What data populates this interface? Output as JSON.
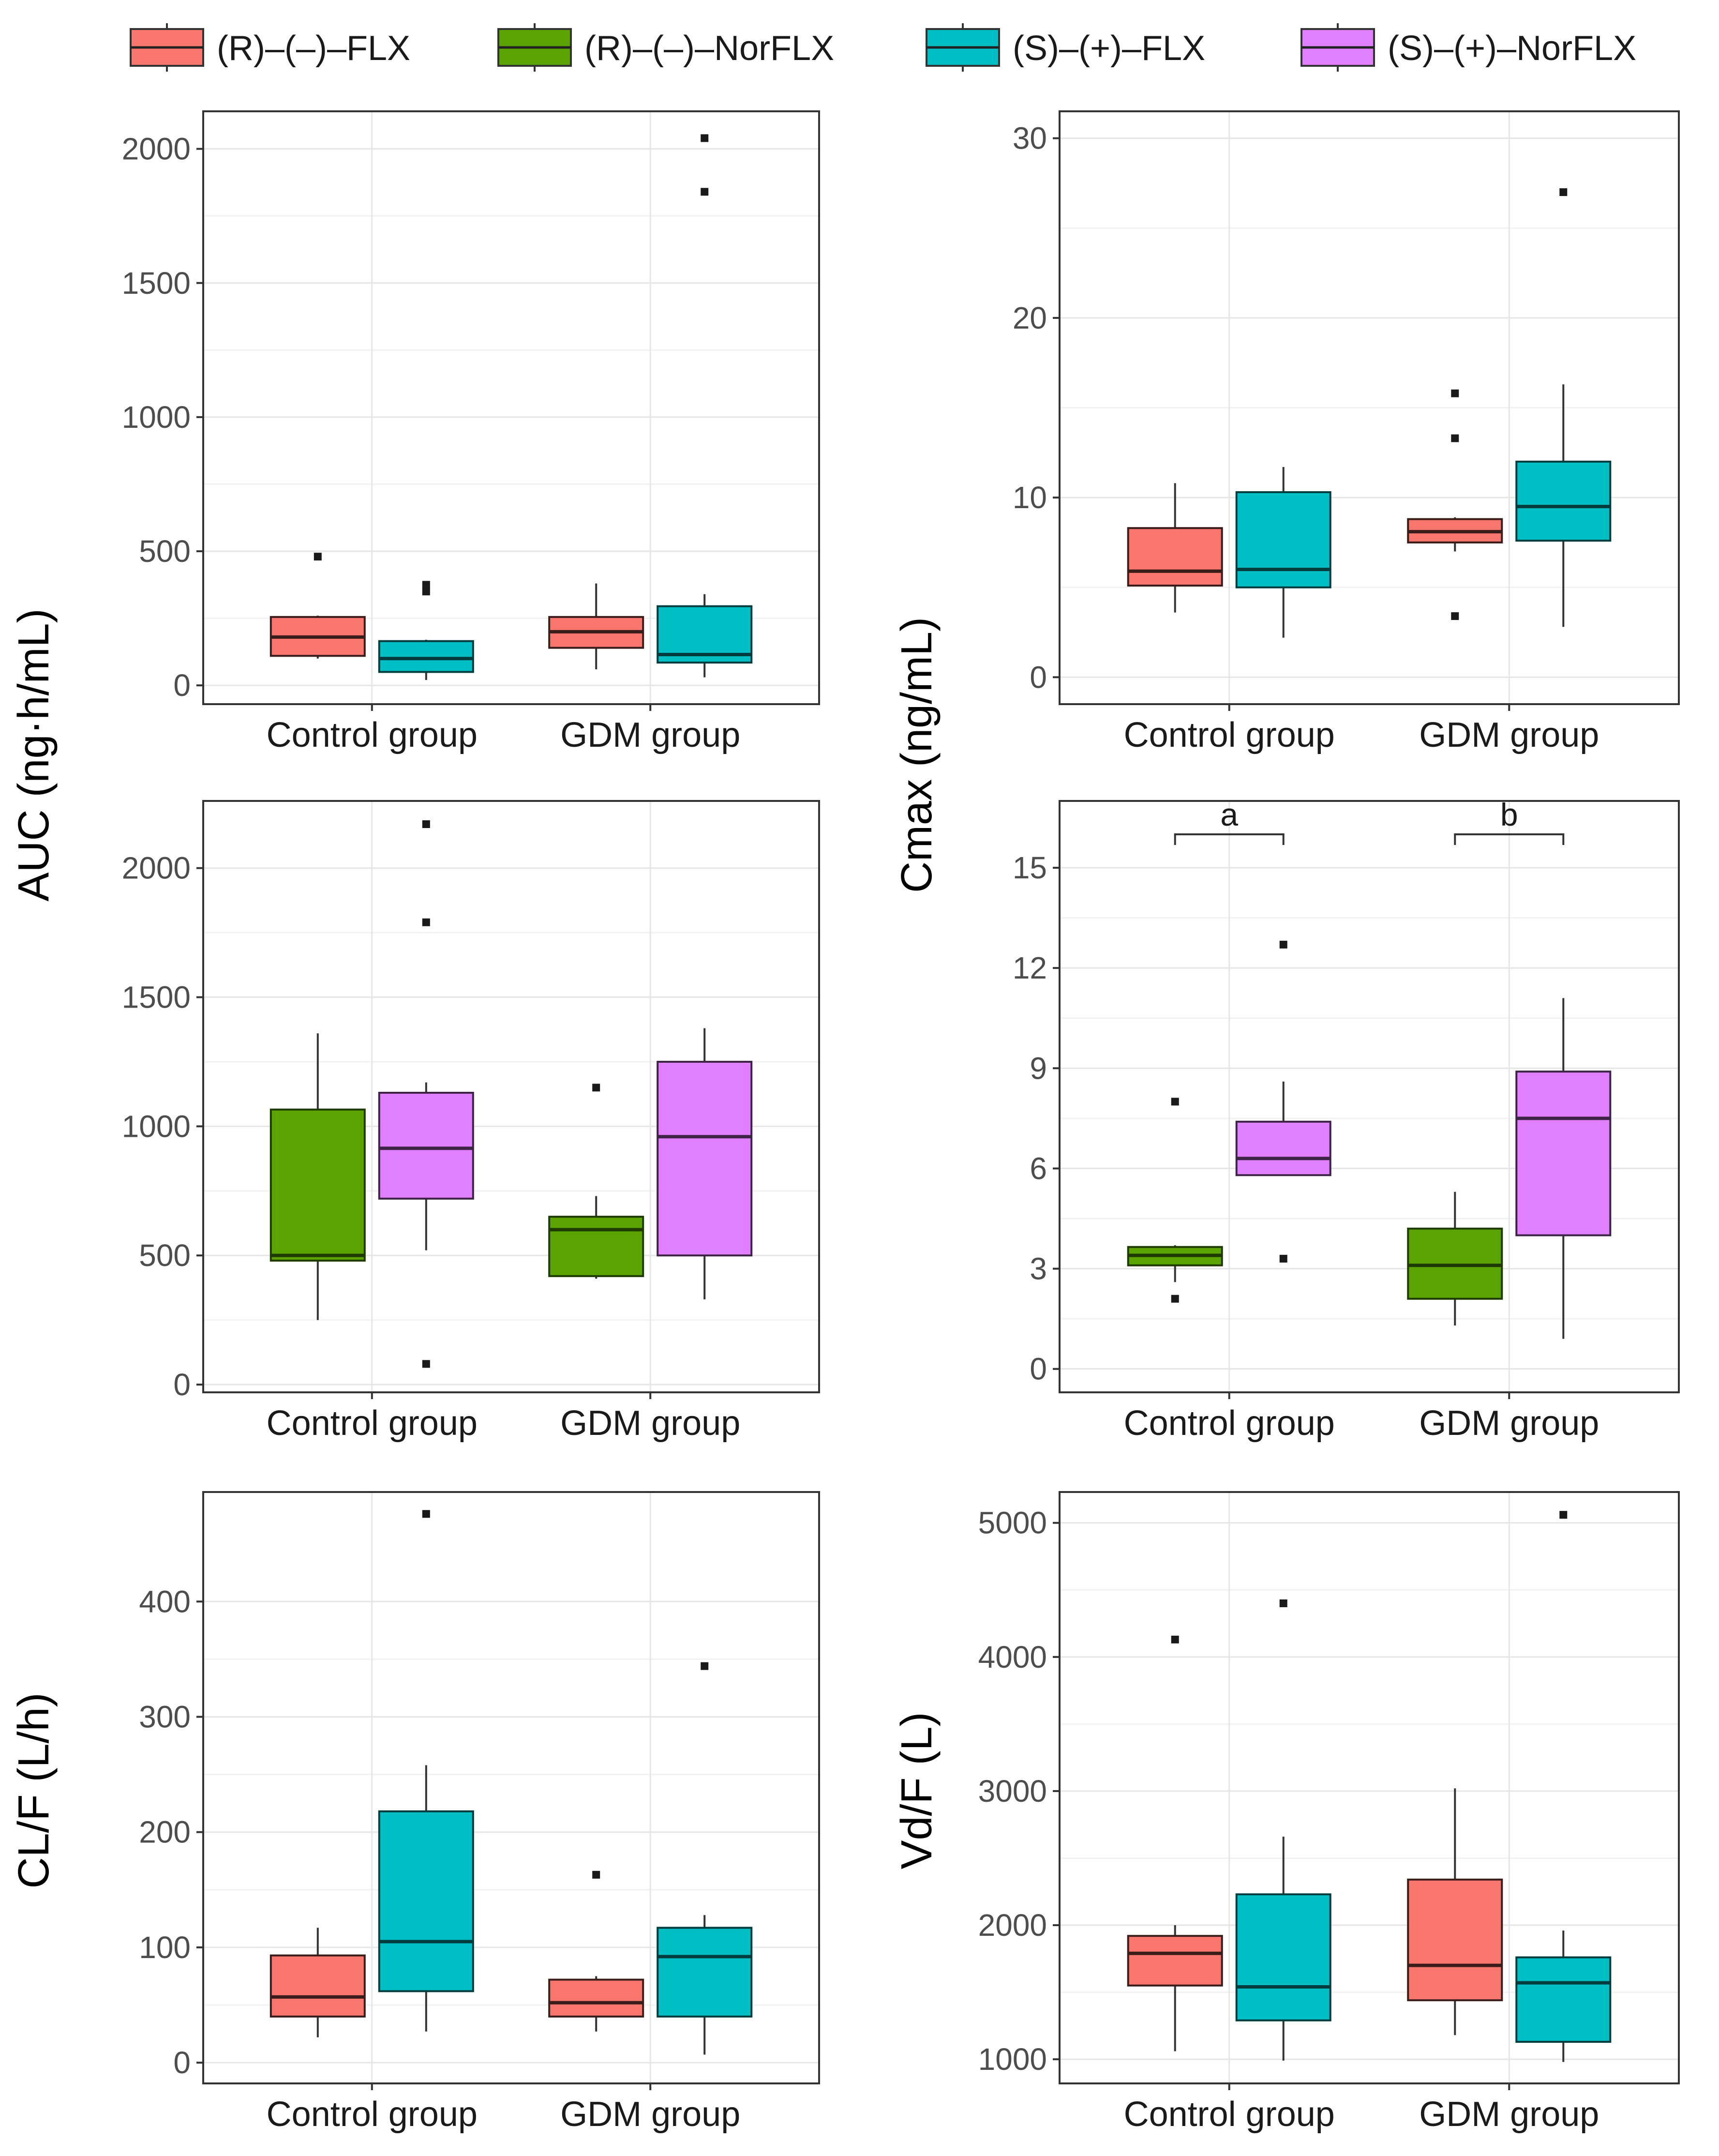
{
  "legend": [
    {
      "label": "(R)–(–)–FLX",
      "color": "#F8766D"
    },
    {
      "label": "(R)–(–)–NorFLX",
      "color": "#5BA300"
    },
    {
      "label": "(S)–(+)–FLX",
      "color": "#00BFC4"
    },
    {
      "label": "(S)–(+)–NorFLX",
      "color": "#E180FF"
    }
  ],
  "y_titles": {
    "auc": "AUC (ng·h/mL)",
    "cmax": "Cmax (ng/mL)",
    "clf": "CL/F (L/h)",
    "vdf": "Vd/F (L)"
  },
  "chart_data": [
    {
      "type": "box",
      "panel": "AUC FLX",
      "categories": [
        "Control group",
        "GDM group"
      ],
      "ylim": [
        -70,
        2140
      ],
      "yticks": [
        0,
        500,
        1000,
        1500,
        2000
      ],
      "series": [
        {
          "name": "(R)–(–)–FLX",
          "color": "#F8766D",
          "boxes": [
            {
              "whisker_low": 100,
              "q1": 110,
              "median": 180,
              "q3": 255,
              "whisker_high": 260,
              "outliers": [
                480
              ]
            },
            {
              "whisker_low": 60,
              "q1": 140,
              "median": 200,
              "q3": 255,
              "whisker_high": 380,
              "outliers": []
            }
          ]
        },
        {
          "name": "(S)–(+)–FLX",
          "color": "#00BFC4",
          "boxes": [
            {
              "whisker_low": 20,
              "q1": 50,
              "median": 100,
              "q3": 165,
              "whisker_high": 170,
              "outliers": [
                350,
                375
              ]
            },
            {
              "whisker_low": 30,
              "q1": 85,
              "median": 115,
              "q3": 295,
              "whisker_high": 340,
              "outliers": [
                1840,
                2040
              ]
            }
          ]
        }
      ]
    },
    {
      "type": "box",
      "panel": "Cmax FLX",
      "categories": [
        "Control group",
        "GDM group"
      ],
      "ylim": [
        -1.5,
        31.5
      ],
      "yticks": [
        0,
        10,
        20,
        30
      ],
      "series": [
        {
          "name": "(R)–(–)–FLX",
          "color": "#F8766D",
          "boxes": [
            {
              "whisker_low": 3.6,
              "q1": 5.1,
              "median": 5.9,
              "q3": 8.3,
              "whisker_high": 10.8,
              "outliers": []
            },
            {
              "whisker_low": 7.0,
              "q1": 7.5,
              "median": 8.1,
              "q3": 8.8,
              "whisker_high": 8.9,
              "outliers": [
                3.4,
                13.3,
                15.8
              ]
            }
          ]
        },
        {
          "name": "(S)–(+)–FLX",
          "color": "#00BFC4",
          "boxes": [
            {
              "whisker_low": 2.2,
              "q1": 5.0,
              "median": 6.0,
              "q3": 10.3,
              "whisker_high": 11.7,
              "outliers": []
            },
            {
              "whisker_low": 2.8,
              "q1": 7.6,
              "median": 9.5,
              "q3": 12.0,
              "whisker_high": 16.3,
              "outliers": [
                27.0
              ]
            }
          ]
        }
      ]
    },
    {
      "type": "box",
      "panel": "AUC NorFLX",
      "categories": [
        "Control group",
        "GDM group"
      ],
      "ylim": [
        -30,
        2260
      ],
      "yticks": [
        0,
        500,
        1000,
        1500,
        2000
      ],
      "series": [
        {
          "name": "(R)–(–)–NorFLX",
          "color": "#5BA300",
          "boxes": [
            {
              "whisker_low": 250,
              "q1": 480,
              "median": 500,
              "q3": 1065,
              "whisker_high": 1360,
              "outliers": []
            },
            {
              "whisker_low": 410,
              "q1": 420,
              "median": 600,
              "q3": 650,
              "whisker_high": 730,
              "outliers": [
                1150
              ]
            }
          ]
        },
        {
          "name": "(S)–(+)–NorFLX",
          "color": "#E180FF",
          "boxes": [
            {
              "whisker_low": 520,
              "q1": 720,
              "median": 915,
              "q3": 1130,
              "whisker_high": 1170,
              "outliers": [
                80,
                1790,
                2170
              ]
            },
            {
              "whisker_low": 330,
              "q1": 500,
              "median": 960,
              "q3": 1250,
              "whisker_high": 1380,
              "outliers": []
            }
          ]
        }
      ]
    },
    {
      "type": "box",
      "panel": "Cmax NorFLX",
      "categories": [
        "Control group",
        "GDM group"
      ],
      "ylim": [
        -0.7,
        17.0
      ],
      "yticks": [
        0,
        3,
        6,
        9,
        12,
        15
      ],
      "annotations": [
        {
          "label": "a",
          "group": "Control group",
          "bracket_y": 16.0
        },
        {
          "label": "b",
          "group": "GDM group",
          "bracket_y": 16.0
        }
      ],
      "series": [
        {
          "name": "(R)–(–)–NorFLX",
          "color": "#5BA300",
          "boxes": [
            {
              "whisker_low": 2.6,
              "q1": 3.1,
              "median": 3.4,
              "q3": 3.65,
              "whisker_high": 3.7,
              "outliers": [
                2.1,
                8.0
              ]
            },
            {
              "whisker_low": 1.3,
              "q1": 2.1,
              "median": 3.1,
              "q3": 4.2,
              "whisker_high": 5.3,
              "outliers": []
            }
          ]
        },
        {
          "name": "(S)–(+)–NorFLX",
          "color": "#E180FF",
          "boxes": [
            {
              "whisker_low": 5.8,
              "q1": 5.8,
              "median": 6.3,
              "q3": 7.4,
              "whisker_high": 8.6,
              "outliers": [
                3.3,
                12.7
              ]
            },
            {
              "whisker_low": 0.9,
              "q1": 4.0,
              "median": 7.5,
              "q3": 8.9,
              "whisker_high": 11.1,
              "outliers": []
            }
          ]
        }
      ]
    },
    {
      "type": "box",
      "panel": "CL/F FLX",
      "categories": [
        "Control group",
        "GDM group"
      ],
      "ylim": [
        -18,
        495
      ],
      "yticks": [
        0,
        100,
        200,
        300,
        400
      ],
      "series": [
        {
          "name": "(R)–(–)–FLX",
          "color": "#F8766D",
          "boxes": [
            {
              "whisker_low": 22,
              "q1": 40,
              "median": 57,
              "q3": 93,
              "whisker_high": 117,
              "outliers": []
            },
            {
              "whisker_low": 27,
              "q1": 40,
              "median": 52,
              "q3": 72,
              "whisker_high": 75,
              "outliers": [
                163
              ]
            }
          ]
        },
        {
          "name": "(S)–(+)–FLX",
          "color": "#00BFC4",
          "boxes": [
            {
              "whisker_low": 27,
              "q1": 62,
              "median": 105,
              "q3": 218,
              "whisker_high": 258,
              "outliers": [
                476
              ]
            },
            {
              "whisker_low": 7,
              "q1": 40,
              "median": 92,
              "q3": 117,
              "whisker_high": 128,
              "outliers": [
                344
              ]
            }
          ]
        }
      ]
    },
    {
      "type": "box",
      "panel": "Vd/F FLX",
      "categories": [
        "Control group",
        "GDM group"
      ],
      "ylim": [
        820,
        5230
      ],
      "yticks": [
        1000,
        2000,
        3000,
        4000,
        5000
      ],
      "series": [
        {
          "name": "(R)–(–)–FLX",
          "color": "#F8766D",
          "boxes": [
            {
              "whisker_low": 1060,
              "q1": 1550,
              "median": 1790,
              "q3": 1920,
              "whisker_high": 2000,
              "outliers": [
                4130
              ]
            },
            {
              "whisker_low": 1180,
              "q1": 1440,
              "median": 1700,
              "q3": 2340,
              "whisker_high": 3020,
              "outliers": []
            }
          ]
        },
        {
          "name": "(S)–(+)–FLX",
          "color": "#00BFC4",
          "boxes": [
            {
              "whisker_low": 990,
              "q1": 1290,
              "median": 1540,
              "q3": 2230,
              "whisker_high": 2660,
              "outliers": [
                4400
              ]
            },
            {
              "whisker_low": 980,
              "q1": 1130,
              "median": 1570,
              "q3": 1760,
              "whisker_high": 1960,
              "outliers": [
                5060
              ]
            }
          ]
        }
      ]
    }
  ]
}
